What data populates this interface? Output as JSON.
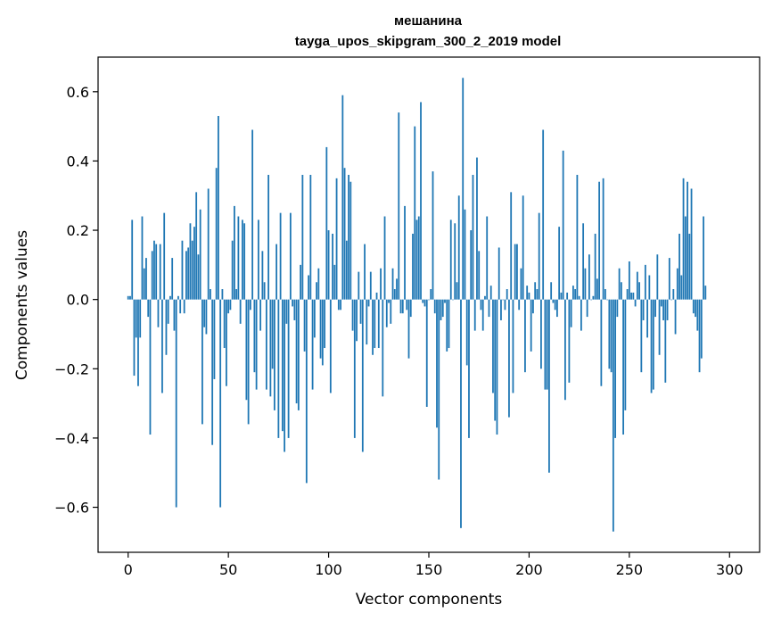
{
  "chart_data": {
    "type": "bar",
    "title": [
      "мешанина",
      "tayga_upos_skipgram_300_2_2019 model"
    ],
    "xlabel": "Vector components",
    "ylabel": "Components values",
    "xlim": [
      -15,
      315
    ],
    "ylim": [
      -0.73,
      0.7
    ],
    "x_ticks": [
      0,
      50,
      100,
      150,
      200,
      250,
      300
    ],
    "y_ticks": [
      -0.6,
      -0.4,
      -0.2,
      0.0,
      0.2,
      0.4,
      0.6
    ],
    "y_tick_labels": [
      "−0.6",
      "−0.4",
      "−0.2",
      "0.0",
      "0.2",
      "0.4",
      "0.6"
    ],
    "bar_color": "#1f77b4",
    "grid": false,
    "values": [
      0.01,
      0.01,
      0.23,
      -0.22,
      -0.11,
      -0.25,
      -0.11,
      0.24,
      0.09,
      0.12,
      -0.05,
      -0.39,
      0.14,
      0.17,
      0.16,
      -0.08,
      0.16,
      -0.27,
      0.25,
      -0.16,
      -0.07,
      0.01,
      0.12,
      -0.09,
      -0.6,
      0.01,
      -0.04,
      0.17,
      -0.04,
      0.14,
      0.15,
      0.22,
      0.17,
      0.21,
      0.31,
      0.13,
      0.26,
      -0.36,
      -0.08,
      -0.1,
      0.32,
      0.03,
      -0.42,
      -0.23,
      0.38,
      0.53,
      -0.6,
      0.03,
      -0.14,
      -0.25,
      -0.04,
      -0.03,
      0.17,
      0.27,
      0.03,
      0.24,
      -0.07,
      0.23,
      0.22,
      -0.29,
      -0.36,
      -0.03,
      0.49,
      -0.21,
      -0.26,
      0.23,
      -0.09,
      0.14,
      0.05,
      -0.26,
      0.36,
      -0.28,
      -0.2,
      -0.32,
      0.16,
      -0.4,
      0.25,
      -0.38,
      -0.44,
      -0.07,
      -0.4,
      0.25,
      -0.02,
      -0.06,
      -0.3,
      -0.32,
      0.1,
      0.36,
      -0.15,
      -0.53,
      0.07,
      0.36,
      -0.26,
      -0.11,
      0.05,
      0.09,
      -0.17,
      -0.19,
      -0.14,
      0.44,
      0.2,
      -0.27,
      0.19,
      0.1,
      0.35,
      -0.03,
      -0.03,
      0.59,
      0.38,
      0.17,
      0.36,
      0.34,
      -0.09,
      -0.4,
      -0.12,
      0.08,
      -0.07,
      -0.44,
      0.16,
      -0.13,
      -0.02,
      0.08,
      -0.16,
      -0.14,
      0.02,
      -0.14,
      0.09,
      -0.28,
      0.24,
      -0.08,
      -0.01,
      -0.07,
      0.09,
      0.03,
      0.06,
      0.54,
      -0.04,
      -0.04,
      0.27,
      -0.03,
      -0.17,
      -0.05,
      0.19,
      0.5,
      0.23,
      0.24,
      0.57,
      -0.01,
      -0.02,
      -0.31,
      0.0,
      0.03,
      0.37,
      -0.04,
      -0.37,
      -0.52,
      -0.06,
      -0.05,
      -0.01,
      -0.15,
      -0.14,
      0.23,
      0.0,
      0.22,
      0.05,
      0.3,
      -0.66,
      0.64,
      0.26,
      -0.19,
      -0.4,
      0.2,
      0.36,
      -0.09,
      0.41,
      0.14,
      -0.03,
      -0.09,
      0.01,
      0.24,
      -0.05,
      0.04,
      -0.27,
      -0.35,
      -0.39,
      0.15,
      -0.06,
      0.0,
      -0.03,
      0.03,
      -0.34,
      0.31,
      -0.27,
      0.16,
      0.16,
      -0.03,
      0.09,
      0.3,
      -0.21,
      0.04,
      0.02,
      -0.15,
      -0.04,
      0.05,
      0.03,
      0.25,
      -0.2,
      0.49,
      -0.26,
      -0.26,
      -0.5,
      0.05,
      -0.01,
      -0.03,
      -0.05,
      0.21,
      0.02,
      0.43,
      -0.29,
      0.02,
      -0.24,
      -0.08,
      0.04,
      0.03,
      0.36,
      0.01,
      -0.09,
      0.22,
      0.09,
      -0.05,
      0.13,
      0.0,
      0.01,
      0.19,
      0.06,
      0.34,
      -0.25,
      0.35,
      0.03,
      0.0,
      -0.2,
      -0.21,
      -0.67,
      -0.4,
      -0.05,
      0.09,
      0.05,
      -0.39,
      -0.32,
      0.03,
      0.11,
      0.02,
      0.02,
      -0.02,
      0.08,
      0.05,
      -0.21,
      -0.06,
      0.1,
      -0.11,
      0.07,
      -0.27,
      -0.26,
      -0.05,
      0.13,
      -0.16,
      -0.02,
      -0.06,
      -0.24,
      -0.06,
      0.12,
      0.0,
      0.03,
      -0.1,
      0.09,
      0.19,
      0.07,
      0.35,
      0.24,
      0.34,
      0.19,
      0.32,
      -0.04,
      -0.05,
      -0.09,
      -0.21,
      -0.17,
      0.24,
      0.04
    ]
  }
}
